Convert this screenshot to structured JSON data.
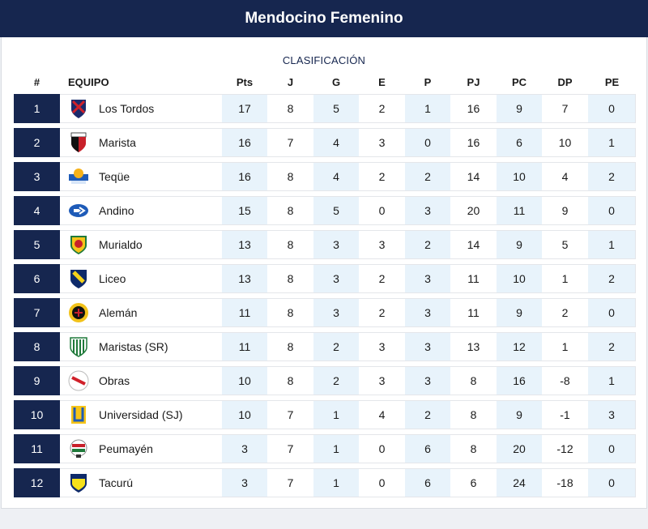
{
  "header": {
    "title": "Mendocino Femenino"
  },
  "table": {
    "subtitle": "CLASIFICACIÓN",
    "columns": {
      "pos": "#",
      "team": "EQUIPO",
      "pts": "Pts",
      "j": "J",
      "g": "G",
      "e": "E",
      "p": "P",
      "pj": "PJ",
      "pc": "PC",
      "dp": "DP",
      "pe": "PE"
    },
    "rows": [
      {
        "pos": "1",
        "team": "Los Tordos",
        "crest": "los-tordos-crest-icon",
        "pts": "17",
        "j": "8",
        "g": "5",
        "e": "2",
        "p": "1",
        "pj": "16",
        "pc": "9",
        "dp": "7",
        "pe": "0"
      },
      {
        "pos": "2",
        "team": "Marista",
        "crest": "marista-crest-icon",
        "pts": "16",
        "j": "7",
        "g": "4",
        "e": "3",
        "p": "0",
        "pj": "16",
        "pc": "6",
        "dp": "10",
        "pe": "1"
      },
      {
        "pos": "3",
        "team": "Teqüe",
        "crest": "teque-crest-icon",
        "pts": "16",
        "j": "8",
        "g": "4",
        "e": "2",
        "p": "2",
        "pj": "14",
        "pc": "10",
        "dp": "4",
        "pe": "2"
      },
      {
        "pos": "4",
        "team": "Andino",
        "crest": "andino-crest-icon",
        "pts": "15",
        "j": "8",
        "g": "5",
        "e": "0",
        "p": "3",
        "pj": "20",
        "pc": "11",
        "dp": "9",
        "pe": "0"
      },
      {
        "pos": "5",
        "team": "Murialdo",
        "crest": "murialdo-crest-icon",
        "pts": "13",
        "j": "8",
        "g": "3",
        "e": "3",
        "p": "2",
        "pj": "14",
        "pc": "9",
        "dp": "5",
        "pe": "1"
      },
      {
        "pos": "6",
        "team": "Liceo",
        "crest": "liceo-crest-icon",
        "pts": "13",
        "j": "8",
        "g": "3",
        "e": "2",
        "p": "3",
        "pj": "11",
        "pc": "10",
        "dp": "1",
        "pe": "2"
      },
      {
        "pos": "7",
        "team": "Alemán",
        "crest": "aleman-crest-icon",
        "pts": "11",
        "j": "8",
        "g": "3",
        "e": "2",
        "p": "3",
        "pj": "11",
        "pc": "9",
        "dp": "2",
        "pe": "0"
      },
      {
        "pos": "8",
        "team": "Maristas (SR)",
        "crest": "maristas-sr-crest-icon",
        "pts": "11",
        "j": "8",
        "g": "2",
        "e": "3",
        "p": "3",
        "pj": "13",
        "pc": "12",
        "dp": "1",
        "pe": "2"
      },
      {
        "pos": "9",
        "team": "Obras",
        "crest": "obras-crest-icon",
        "pts": "10",
        "j": "8",
        "g": "2",
        "e": "3",
        "p": "3",
        "pj": "8",
        "pc": "16",
        "dp": "-8",
        "pe": "1"
      },
      {
        "pos": "10",
        "team": "Universidad (SJ)",
        "crest": "universidad-sj-crest-icon",
        "pts": "10",
        "j": "7",
        "g": "1",
        "e": "4",
        "p": "2",
        "pj": "8",
        "pc": "9",
        "dp": "-1",
        "pe": "3"
      },
      {
        "pos": "11",
        "team": "Peumayén",
        "crest": "peumayen-crest-icon",
        "pts": "3",
        "j": "7",
        "g": "1",
        "e": "0",
        "p": "6",
        "pj": "8",
        "pc": "20",
        "dp": "-12",
        "pe": "0"
      },
      {
        "pos": "12",
        "team": "Tacurú",
        "crest": "tacuru-crest-icon",
        "pts": "3",
        "j": "7",
        "g": "1",
        "e": "0",
        "p": "6",
        "pj": "6",
        "pc": "24",
        "dp": "-18",
        "pe": "0"
      }
    ]
  },
  "colors": {
    "header_bg": "#16264f",
    "position_cell": "#16264f",
    "shaded_cell": "#e8f3fb"
  }
}
